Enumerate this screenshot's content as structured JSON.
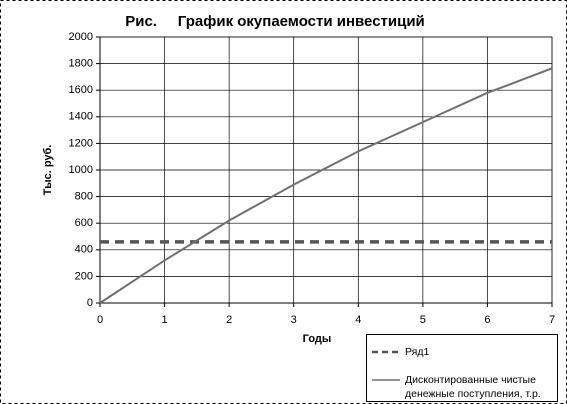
{
  "chart_data": {
    "type": "line",
    "title": "Рис.     График окупаемости инвестиций",
    "xlabel": "Годы",
    "ylabel": "Тыс. руб.",
    "x": [
      0,
      1,
      2,
      3,
      4,
      5,
      6,
      7
    ],
    "series": [
      {
        "name": "Ряд1",
        "color": "#555555",
        "dashed": true,
        "values": [
          460,
          460,
          460,
          460,
          460,
          460,
          460,
          460
        ]
      },
      {
        "name": "Дисконтированные чистые денежные поступления, т.р.",
        "color": "#707070",
        "dashed": false,
        "values": [
          0,
          320,
          620,
          890,
          1140,
          1360,
          1580,
          1765
        ]
      }
    ],
    "xlim": [
      0,
      7
    ],
    "xticks": [
      0,
      1,
      2,
      3,
      4,
      5,
      6,
      7
    ],
    "ylim": [
      0,
      2000
    ],
    "yticks": [
      0,
      200,
      400,
      600,
      800,
      1000,
      1200,
      1400,
      1600,
      1800,
      2000
    ],
    "grid": true,
    "legend": "bottom-right"
  }
}
